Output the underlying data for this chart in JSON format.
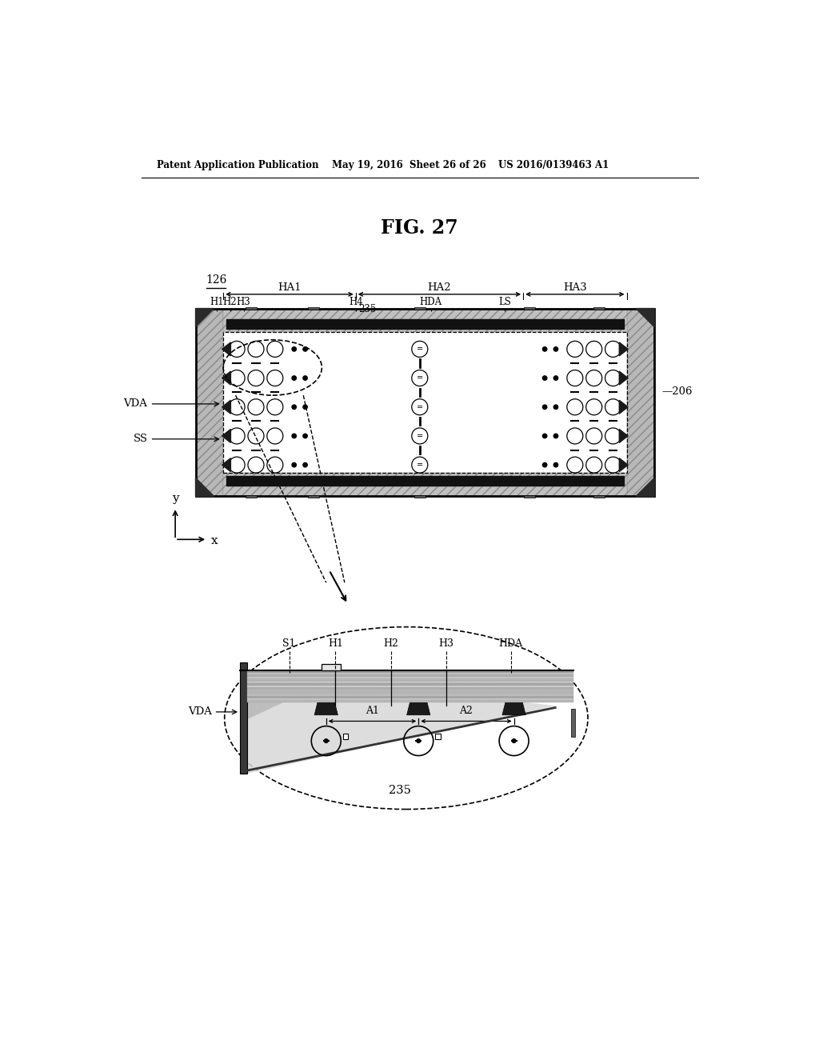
{
  "header_left": "Patent Application Publication",
  "header_mid": "May 19, 2016  Sheet 26 of 26",
  "header_right": "US 2016/0139463 A1",
  "fig_title": "FIG. 27",
  "bg_color": "#ffffff",
  "line_color": "#000000"
}
